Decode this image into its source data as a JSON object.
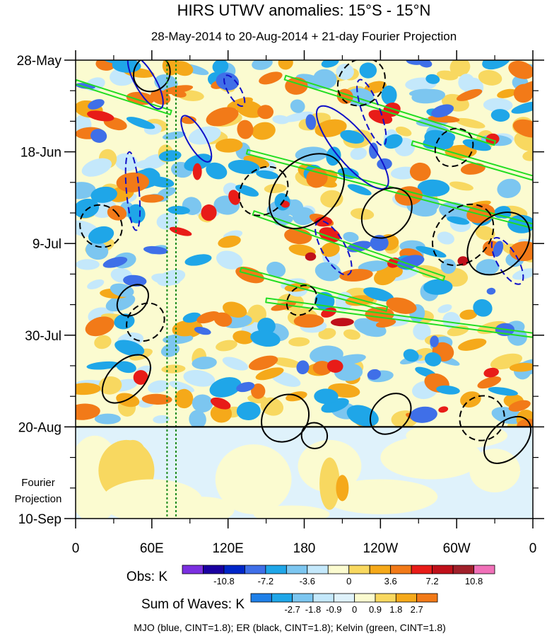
{
  "chart_data": {
    "type": "heatmap",
    "title": "HIRS UTWV anomalies: 15°S - 15°N",
    "subtitle": "28-May-2014 to 20-Aug-2014 + 21-day Fourier Projection",
    "xlabel": "",
    "ylabel": "",
    "x_ticks": [
      "0",
      "60E",
      "120E",
      "180",
      "120W",
      "60W",
      "0"
    ],
    "x_tick_values": [
      0,
      60,
      120,
      180,
      240,
      300,
      360
    ],
    "xlim": [
      0,
      360
    ],
    "y_ticks": [
      "28-May",
      "18-Jun",
      "9-Jul",
      "30-Jul",
      "20-Aug",
      "10-Sep"
    ],
    "y_tick_days": [
      0,
      21,
      42,
      63,
      84,
      105
    ],
    "ylim_days": [
      0,
      105
    ],
    "projection_label": [
      "Fourier",
      "Projection"
    ],
    "projection_start_day": 84,
    "reference_lines": [
      {
        "type": "vertical",
        "x": 72,
        "style": "dotted",
        "color": "#1a8a1a"
      },
      {
        "type": "vertical",
        "x": 79,
        "style": "dotted",
        "color": "#1a8a1a"
      },
      {
        "type": "horizontal",
        "day": 84,
        "style": "solid",
        "color": "#000000"
      }
    ],
    "obs_colorbar": {
      "label": "Obs: K",
      "ticks": [
        "-10.8",
        "-7.2",
        "-3.6",
        "0",
        "3.6",
        "7.2",
        "10.8"
      ],
      "tick_values": [
        -10.8,
        -7.2,
        -3.6,
        0,
        3.6,
        7.2,
        10.8
      ],
      "colors": [
        "#7b2fe0",
        "#1a00a0",
        "#0026c8",
        "#3f6fe8",
        "#1fa6e8",
        "#7cc6f0",
        "#c4e8fb",
        "#fbfbd0",
        "#f8d860",
        "#f5a91a",
        "#f27a18",
        "#e81c18",
        "#c0101a",
        "#a0202a",
        "#f070b8"
      ]
    },
    "waves_colorbar": {
      "label": "Sum of Waves: K",
      "ticks": [
        "-2.7",
        "-1.8",
        "-0.9",
        "0",
        "0.9",
        "1.8",
        "2.7"
      ],
      "tick_values": [
        -2.7,
        -1.8,
        -0.9,
        0,
        0.9,
        1.8,
        2.7
      ],
      "colors": [
        "#1f80e8",
        "#1fa6e8",
        "#7cc6f0",
        "#c4e8fb",
        "#dff2fb",
        "#fbfbd0",
        "#f8d860",
        "#f5a91a",
        "#f27a18"
      ]
    },
    "contour_legend": "MJO (blue, CINT=1.8); ER (black, CINT=1.8); Kelvin (green, CINT=1.8)",
    "series": [
      {
        "name": "MJO",
        "color": "#1010c8",
        "cint": 1.8,
        "contours": [
          {
            "lon": 55,
            "day": 5,
            "rlon": 8,
            "rday": 7,
            "tilt": 30,
            "dash": false
          },
          {
            "lon": 95,
            "day": 18,
            "rlon": 7,
            "rday": 6,
            "tilt": 30,
            "dash": false
          },
          {
            "lon": 125,
            "day": 7,
            "rlon": 5,
            "rday": 4,
            "tilt": 30,
            "dash": true
          },
          {
            "lon": 45,
            "day": 30,
            "rlon": 5,
            "rday": 9,
            "tilt": 5,
            "dash": true
          },
          {
            "lon": 218,
            "day": 20,
            "rlon": 13,
            "rday": 12,
            "tilt": 40,
            "dash": false
          },
          {
            "lon": 233,
            "day": 12,
            "rlon": 7,
            "rday": 8,
            "tilt": 20,
            "dash": true
          },
          {
            "lon": 203,
            "day": 43,
            "rlon": 9,
            "rday": 7,
            "tilt": 30,
            "dash": true
          },
          {
            "lon": 340,
            "day": 46,
            "rlon": 8,
            "rday": 6,
            "tilt": 30,
            "dash": true
          }
        ]
      },
      {
        "name": "ER",
        "color": "#000000",
        "cint": 1.8,
        "contours": [
          {
            "lon": 60,
            "day": 3,
            "rlon": 15,
            "rday": 4,
            "tilt": 45,
            "dash": false
          },
          {
            "lon": 182,
            "day": 30,
            "rlon": 34,
            "rday": 7,
            "tilt": 45,
            "dash": false
          },
          {
            "lon": 148,
            "day": 30,
            "rlon": 21,
            "rday": 5,
            "tilt": 45,
            "dash": true
          },
          {
            "lon": 305,
            "day": 40,
            "rlon": 27,
            "rday": 6,
            "tilt": 45,
            "dash": true
          },
          {
            "lon": 333,
            "day": 42,
            "rlon": 28,
            "rday": 6,
            "tilt": 45,
            "dash": false
          },
          {
            "lon": 245,
            "day": 35,
            "rlon": 22,
            "rday": 5,
            "tilt": 45,
            "dash": false
          },
          {
            "lon": 225,
            "day": 5,
            "rlon": 20,
            "rday": 5,
            "tilt": 45,
            "dash": true
          },
          {
            "lon": 298,
            "day": 20,
            "rlon": 16,
            "rday": 4,
            "tilt": 45,
            "dash": true
          },
          {
            "lon": 20,
            "day": 38,
            "rlon": 16,
            "rday": 5,
            "tilt": 45,
            "dash": true
          },
          {
            "lon": 45,
            "day": 55,
            "rlon": 14,
            "rday": 3,
            "tilt": 45,
            "dash": false
          },
          {
            "lon": 55,
            "day": 60,
            "rlon": 16,
            "rday": 4,
            "tilt": 45,
            "dash": true
          },
          {
            "lon": 40,
            "day": 73,
            "rlon": 23,
            "rday": 4,
            "tilt": 45,
            "dash": false
          },
          {
            "lon": 165,
            "day": 82,
            "rlon": 20,
            "rday": 5,
            "tilt": 45,
            "dash": false
          },
          {
            "lon": 248,
            "day": 81,
            "rlon": 18,
            "rday": 4,
            "tilt": 45,
            "dash": false
          },
          {
            "lon": 320,
            "day": 82,
            "rlon": 18,
            "rday": 5,
            "tilt": 45,
            "dash": true
          },
          {
            "lon": 340,
            "day": 87,
            "rlon": 22,
            "rday": 4,
            "tilt": 45,
            "dash": false
          },
          {
            "lon": 178,
            "day": 55,
            "rlon": 13,
            "rday": 3,
            "tilt": 45,
            "dash": true
          },
          {
            "lon": 188,
            "day": 86,
            "rlon": 10,
            "rday": 3,
            "tilt": 45,
            "dash": false
          }
        ]
      },
      {
        "name": "Kelvin",
        "color": "#22dd22",
        "cint": 1.8,
        "bands": [
          {
            "lon0": 0,
            "day0": 5,
            "lon1": 75,
            "day1": 12
          },
          {
            "lon0": 165,
            "day0": 4,
            "lon1": 330,
            "day1": 19
          },
          {
            "lon0": 135,
            "day0": 21,
            "lon1": 360,
            "day1": 38
          },
          {
            "lon0": 140,
            "day0": 35,
            "lon1": 290,
            "day1": 50
          },
          {
            "lon0": 130,
            "day0": 48,
            "lon1": 245,
            "day1": 57
          },
          {
            "lon0": 150,
            "day0": 55,
            "lon1": 360,
            "day1": 63
          },
          {
            "lon0": 265,
            "day0": 19,
            "lon1": 360,
            "day1": 27
          }
        ]
      }
    ]
  }
}
